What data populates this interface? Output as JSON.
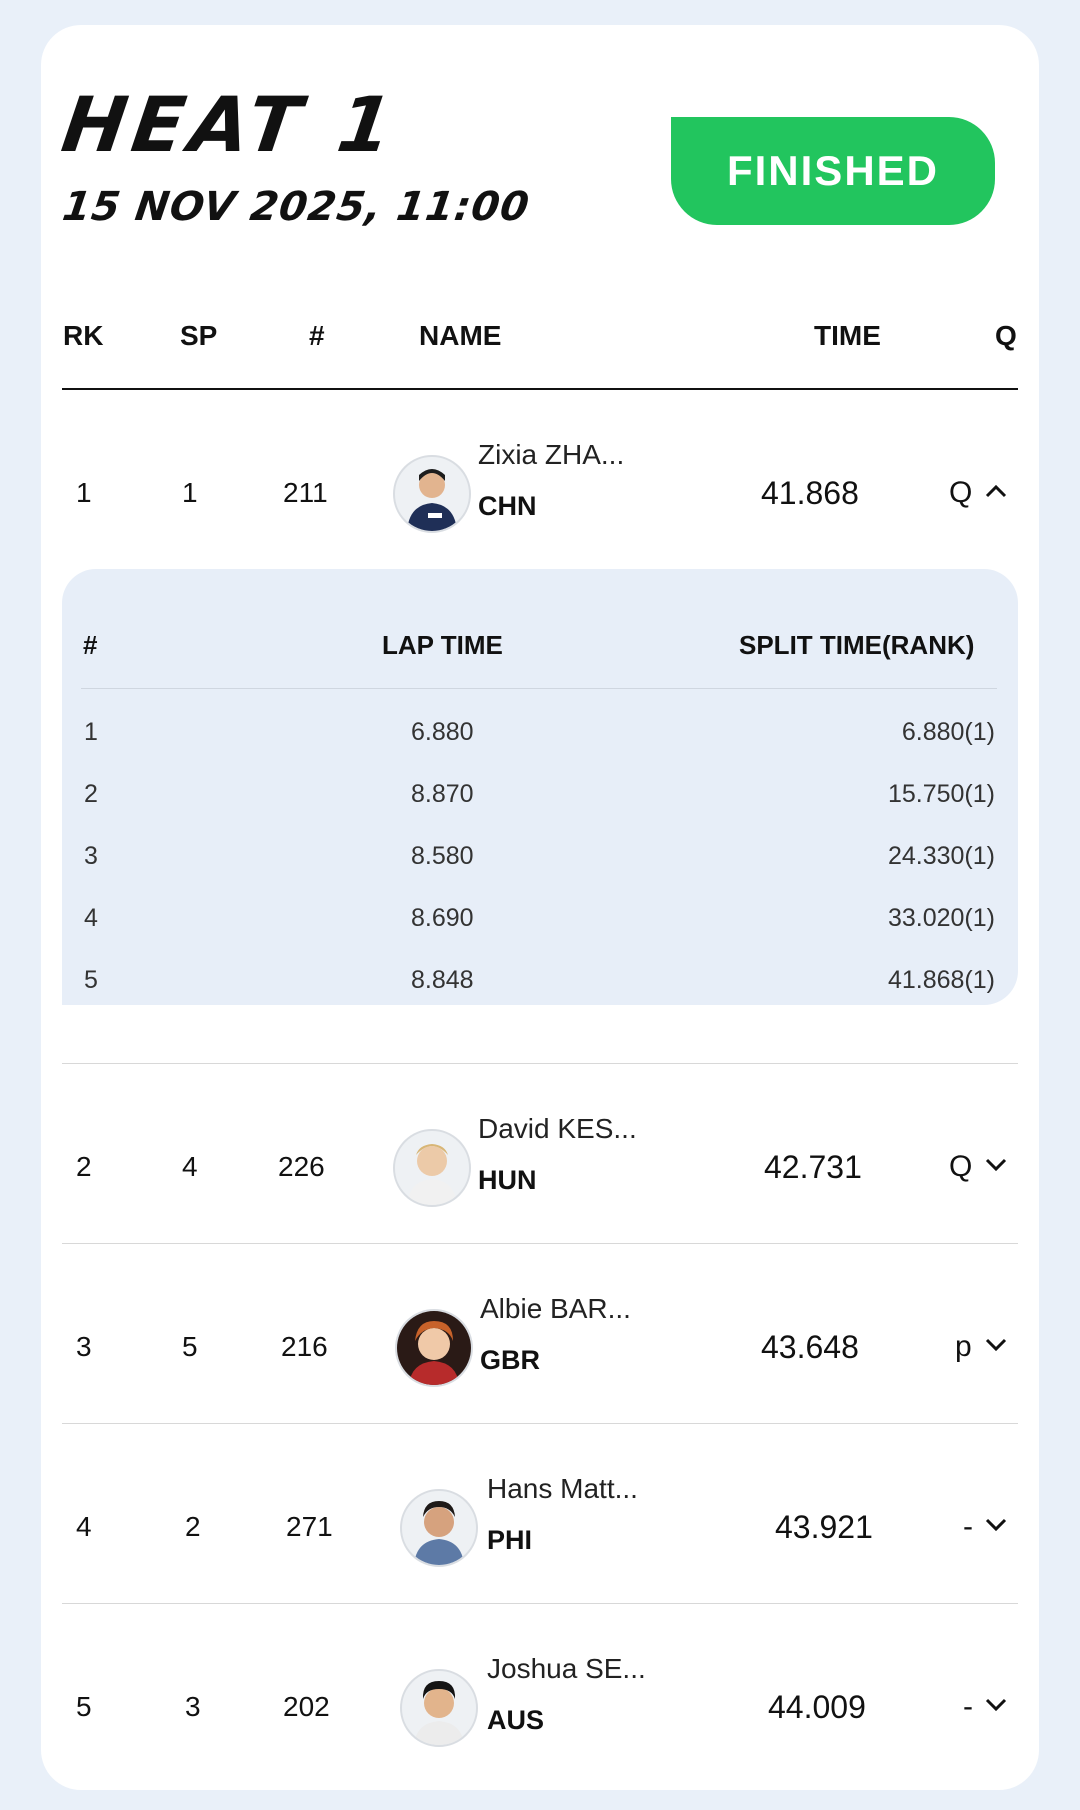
{
  "heat": {
    "title": "HEAT 1",
    "datetime": "15 NOV 2025, 11:00",
    "status": "FINISHED"
  },
  "colors": {
    "status": "#22c55e",
    "page_bg": "#e9f0f9",
    "lap_panel": "#e7eef8"
  },
  "columns": {
    "rk": "RK",
    "sp": "SP",
    "num": "#",
    "name": "NAME",
    "time": "TIME",
    "q": "Q"
  },
  "results": [
    {
      "rk": "1",
      "sp": "1",
      "num": "211",
      "name": "Zixia ZHA...",
      "country": "CHN",
      "time": "41.868",
      "q": "Q",
      "expanded": true,
      "chevron": "chevron-up-icon"
    },
    {
      "rk": "2",
      "sp": "4",
      "num": "226",
      "name": "David KES...",
      "country": "HUN",
      "time": "42.731",
      "q": "Q",
      "expanded": false,
      "chevron": "chevron-down-icon"
    },
    {
      "rk": "3",
      "sp": "5",
      "num": "216",
      "name": "Albie BAR...",
      "country": "GBR",
      "time": "43.648",
      "q": "p",
      "expanded": false,
      "chevron": "chevron-down-icon"
    },
    {
      "rk": "4",
      "sp": "2",
      "num": "271",
      "name": "Hans Matt...",
      "country": "PHI",
      "time": "43.921",
      "q": "-",
      "expanded": false,
      "chevron": "chevron-down-icon"
    },
    {
      "rk": "5",
      "sp": "3",
      "num": "202",
      "name": "Joshua SE...",
      "country": "AUS",
      "time": "44.009",
      "q": "-",
      "expanded": false,
      "chevron": "chevron-down-icon"
    }
  ],
  "laps": {
    "columns": {
      "num": "#",
      "lap": "LAP TIME",
      "split": "SPLIT TIME(RANK)"
    },
    "rows": [
      {
        "num": "1",
        "lap": "6.880",
        "split": "6.880(1)"
      },
      {
        "num": "2",
        "lap": "8.870",
        "split": "15.750(1)"
      },
      {
        "num": "3",
        "lap": "8.580",
        "split": "24.330(1)"
      },
      {
        "num": "4",
        "lap": "8.690",
        "split": "33.020(1)"
      },
      {
        "num": "5",
        "lap": "8.848",
        "split": "41.868(1)"
      }
    ]
  }
}
